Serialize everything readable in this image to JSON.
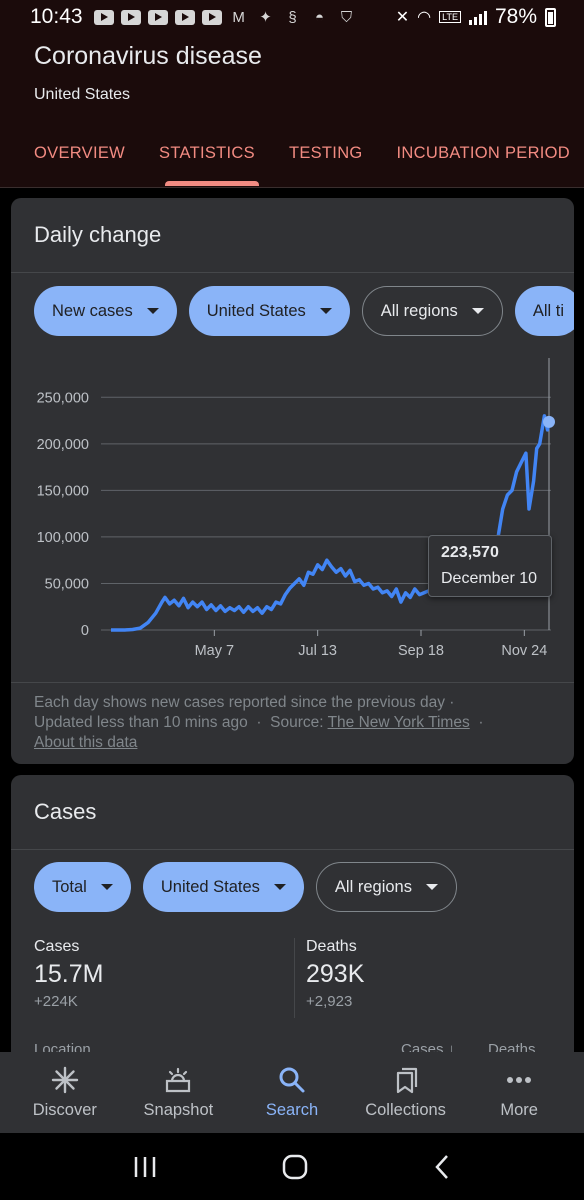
{
  "status_bar": {
    "time": "10:43",
    "battery": "78%",
    "notification_icons": [
      "youtube-icon",
      "youtube-icon",
      "youtube-icon",
      "youtube-icon",
      "youtube-icon",
      "gmail-icon",
      "twitter-icon",
      "shazam-icon",
      "incognito-icon",
      "nfl-icon"
    ]
  },
  "header": {
    "title": "Coronavirus disease",
    "subtitle": "United States",
    "tabs": [
      {
        "label": "OVERVIEW",
        "active": false
      },
      {
        "label": "STATISTICS",
        "active": true
      },
      {
        "label": "TESTING",
        "active": false
      },
      {
        "label": "INCUBATION PERIOD",
        "active": false
      }
    ]
  },
  "daily_change": {
    "title": "Daily change",
    "filters": [
      {
        "label": "New cases",
        "selected": true
      },
      {
        "label": "United States",
        "selected": true
      },
      {
        "label": "All regions",
        "selected": false
      },
      {
        "label": "All ti",
        "selected": true
      }
    ],
    "tooltip": {
      "value": "223,570",
      "date": "December 10"
    },
    "footnote": {
      "line1": "Each day shows new cases reported since the previous day ·",
      "updated": "Updated less than 10 mins ago",
      "source_label": "Source:",
      "source_link": "The New York Times",
      "about_link": "About this data"
    }
  },
  "chart_data": {
    "type": "line",
    "title": "",
    "xlabel": "",
    "ylabel": "",
    "ylim": [
      0,
      260000
    ],
    "yticks": [
      0,
      50000,
      100000,
      150000,
      200000,
      250000
    ],
    "ytick_labels": [
      "0",
      "50,000",
      "100,000",
      "150,000",
      "200,000",
      "250,000"
    ],
    "xtick_labels": [
      "May 7",
      "Jul 13",
      "Sep 18",
      "Nov 24"
    ],
    "xtick_dates": [
      "2020-05-07",
      "2020-07-13",
      "2020-09-18",
      "2020-11-24"
    ],
    "grid": true,
    "line_color": "#4285f4",
    "series": [
      {
        "x": [
          "2020-03-01",
          "2020-03-10",
          "2020-03-15",
          "2020-03-20",
          "2020-03-25",
          "2020-03-30",
          "2020-04-03",
          "2020-04-05",
          "2020-04-08",
          "2020-04-11",
          "2020-04-14",
          "2020-04-17",
          "2020-04-20",
          "2020-04-23",
          "2020-04-26",
          "2020-04-29",
          "2020-05-02",
          "2020-05-05",
          "2020-05-08",
          "2020-05-11",
          "2020-05-14",
          "2020-05-17",
          "2020-05-20",
          "2020-05-23",
          "2020-05-26",
          "2020-05-29",
          "2020-06-01",
          "2020-06-04",
          "2020-06-07",
          "2020-06-10",
          "2020-06-13",
          "2020-06-16",
          "2020-06-19",
          "2020-06-22",
          "2020-06-25",
          "2020-06-28",
          "2020-07-01",
          "2020-07-04",
          "2020-07-07",
          "2020-07-10",
          "2020-07-13",
          "2020-07-16",
          "2020-07-19",
          "2020-07-22",
          "2020-07-25",
          "2020-07-28",
          "2020-07-31",
          "2020-08-03",
          "2020-08-06",
          "2020-08-09",
          "2020-08-12",
          "2020-08-15",
          "2020-08-18",
          "2020-08-21",
          "2020-08-24",
          "2020-08-27",
          "2020-08-30",
          "2020-09-02",
          "2020-09-05",
          "2020-09-08",
          "2020-09-11",
          "2020-09-14",
          "2020-09-17",
          "2020-09-20",
          "2020-09-23",
          "2020-09-26",
          "2020-09-29",
          "2020-10-02",
          "2020-10-05",
          "2020-10-08",
          "2020-10-11",
          "2020-10-14",
          "2020-10-17",
          "2020-10-20",
          "2020-10-23",
          "2020-10-26",
          "2020-10-29",
          "2020-11-01",
          "2020-11-04",
          "2020-11-07",
          "2020-11-10",
          "2020-11-13",
          "2020-11-16",
          "2020-11-19",
          "2020-11-22",
          "2020-11-25",
          "2020-11-27",
          "2020-11-30",
          "2020-12-02",
          "2020-12-04",
          "2020-12-07",
          "2020-12-09",
          "2020-12-10"
        ],
        "y": [
          0,
          0,
          500,
          2000,
          8000,
          18000,
          30000,
          35000,
          28000,
          32000,
          26000,
          34000,
          24000,
          30000,
          25000,
          30000,
          22000,
          27000,
          21000,
          26000,
          20000,
          24000,
          21000,
          25000,
          19000,
          25000,
          20000,
          24000,
          18000,
          25000,
          22000,
          30000,
          28000,
          38000,
          45000,
          50000,
          55000,
          48000,
          62000,
          60000,
          70000,
          65000,
          75000,
          68000,
          62000,
          66000,
          58000,
          64000,
          52000,
          54000,
          48000,
          50000,
          44000,
          46000,
          40000,
          42000,
          36000,
          44000,
          30000,
          40000,
          35000,
          44000,
          38000,
          40000,
          42000,
          45000,
          38000,
          46000,
          42000,
          50000,
          48000,
          55000,
          60000,
          68000,
          75000,
          80000,
          82000,
          90000,
          95000,
          100000,
          130000,
          145000,
          150000,
          170000,
          180000,
          190000,
          130000,
          160000,
          195000,
          200000,
          230000,
          215000,
          223570
        ]
      }
    ]
  },
  "cases_card": {
    "title": "Cases",
    "filters": [
      {
        "label": "Total",
        "selected": true
      },
      {
        "label": "United States",
        "selected": true
      },
      {
        "label": "All regions",
        "selected": false
      }
    ],
    "stats": [
      {
        "label": "Cases",
        "value": "15.7M",
        "delta": "+224K"
      },
      {
        "label": "Deaths",
        "value": "293K",
        "delta": "+2,923"
      }
    ],
    "table_peek": {
      "location": "Location",
      "cases": "Cases",
      "deaths": "Deaths"
    }
  },
  "bottom_nav": [
    {
      "label": "Discover",
      "icon": "asterisk-icon",
      "active": false
    },
    {
      "label": "Snapshot",
      "icon": "snapshot-icon",
      "active": false
    },
    {
      "label": "Search",
      "icon": "search-icon",
      "active": true
    },
    {
      "label": "Collections",
      "icon": "collections-icon",
      "active": false
    },
    {
      "label": "More",
      "icon": "more-icon",
      "active": false
    }
  ],
  "colors": {
    "accent_red": "#f28b82",
    "accent_blue": "#8ab4f8",
    "card": "#303134",
    "header_bg": "#1b0b0b"
  }
}
